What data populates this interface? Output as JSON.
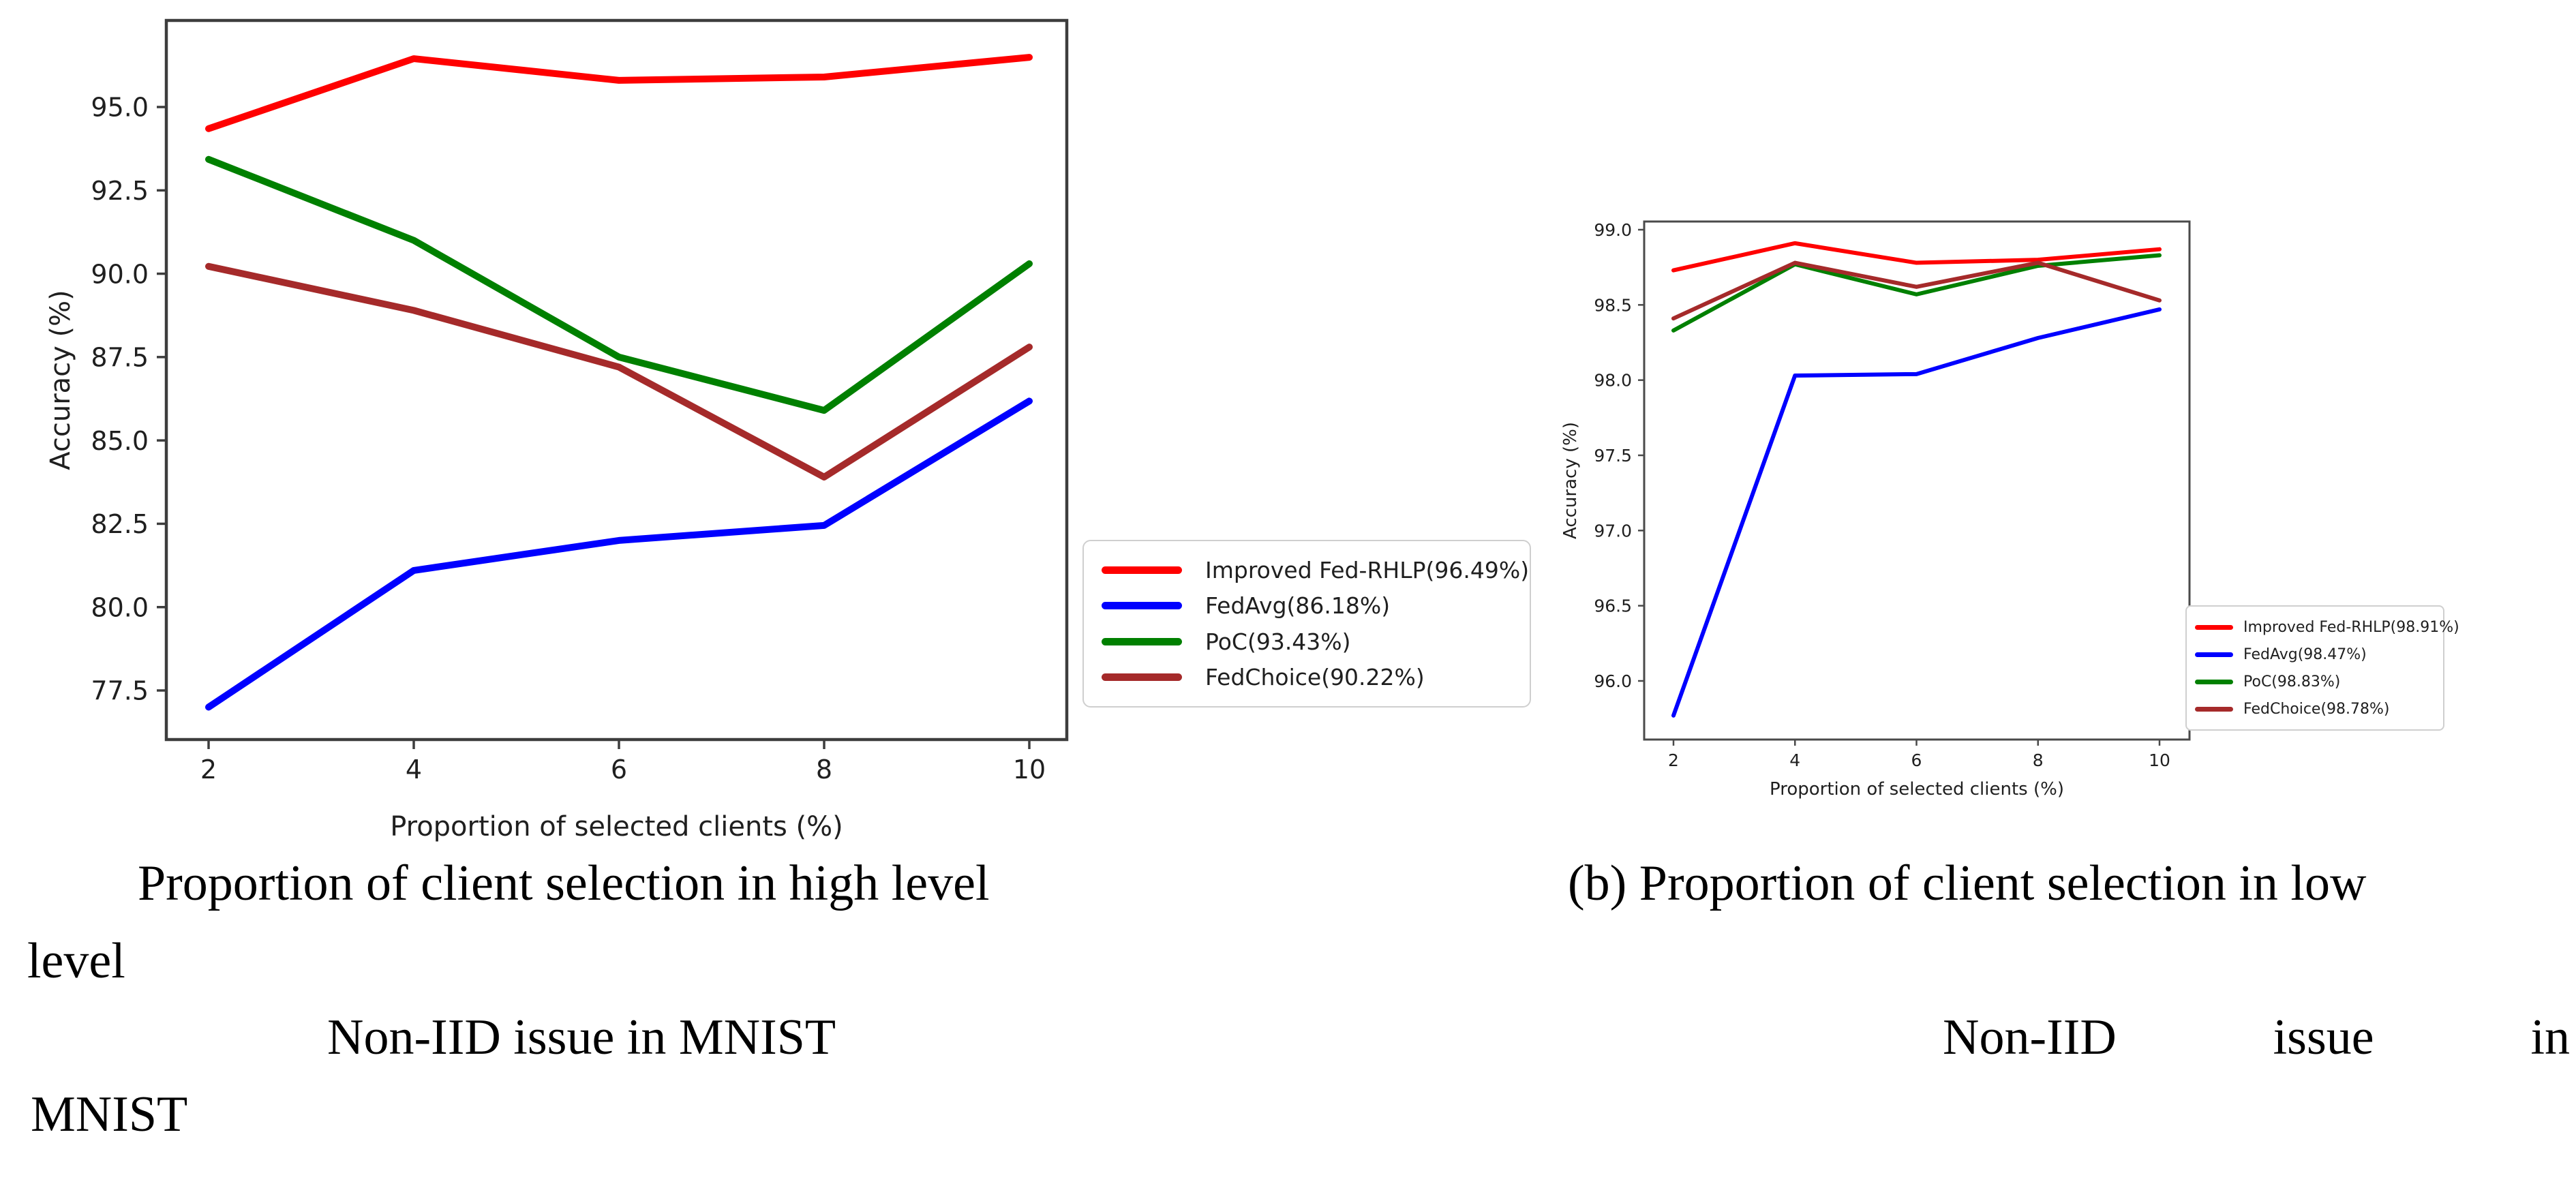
{
  "page": {
    "background": "#ffffff"
  },
  "colors": {
    "red": "#ff0000",
    "blue": "#0000ff",
    "green": "#008000",
    "brown": "#a52a2a",
    "spine_left_chart": "#3d3d3d",
    "spine_right_chart": "#4a4a4a",
    "legend_border": "#cfcfcf",
    "text": "#1f1f1f"
  },
  "chart_data": [
    {
      "id": "high-level-noniid-mnist",
      "type": "line",
      "title": "",
      "xlabel": "Proportion of selected clients (%)",
      "ylabel": "Accuracy (%)",
      "x": [
        2,
        4,
        6,
        8,
        10
      ],
      "xtick_labels": [
        "2",
        "4",
        "6",
        "8",
        "10"
      ],
      "ytick_values": [
        95.0,
        92.5,
        90.0,
        87.5,
        85.0,
        82.5,
        80.0,
        77.5
      ],
      "ytick_labels": [
        "95.0",
        "92.5",
        "90.0",
        "87.5",
        "85.0",
        "82.5",
        "80.0",
        "77.5"
      ],
      "ylim": [
        75.9,
        97.7
      ],
      "grid": false,
      "legend_position": "outside-right",
      "series": [
        {
          "name": "Improved Fed-RHLP(96.49%)",
          "color": "red",
          "values": [
            94.35,
            96.45,
            95.8,
            95.9,
            96.49
          ]
        },
        {
          "name": "FedAvg(86.18%)",
          "color": "blue",
          "values": [
            77.0,
            81.1,
            82.0,
            82.45,
            86.18
          ]
        },
        {
          "name": "PoC(93.43%)",
          "color": "green",
          "values": [
            93.43,
            91.0,
            87.5,
            85.9,
            90.3
          ]
        },
        {
          "name": "FedChoice(90.22%)",
          "color": "brown",
          "values": [
            90.22,
            88.9,
            87.2,
            83.9,
            87.8
          ]
        }
      ]
    },
    {
      "id": "low-level-noniid-mnist",
      "type": "line",
      "title": "",
      "xlabel": "Proportion of selected clients (%)",
      "ylabel": "Accuracy (%)",
      "x": [
        2,
        4,
        6,
        8,
        10
      ],
      "xtick_labels": [
        "2",
        "4",
        "6",
        "8",
        "10"
      ],
      "ytick_values": [
        99.0,
        98.5,
        98.0,
        97.5,
        97.0,
        96.5,
        96.0
      ],
      "ytick_labels": [
        "99.0",
        "98.5",
        "98.0",
        "97.5",
        "97.0",
        "96.5",
        "96.0"
      ],
      "ylim": [
        95.6,
        99.05
      ],
      "grid": false,
      "legend_position": "outside-right",
      "series": [
        {
          "name": "Improved Fed-RHLP(98.91%)",
          "color": "red",
          "values": [
            98.73,
            98.91,
            98.78,
            98.8,
            98.87
          ]
        },
        {
          "name": "FedAvg(98.47%)",
          "color": "blue",
          "values": [
            95.77,
            98.03,
            98.04,
            98.28,
            98.47
          ]
        },
        {
          "name": "PoC(98.83%)",
          "color": "green",
          "values": [
            98.33,
            98.77,
            98.57,
            98.76,
            98.83
          ]
        },
        {
          "name": "FedChoice(98.78%)",
          "color": "brown",
          "values": [
            98.41,
            98.78,
            98.62,
            98.78,
            98.53
          ]
        }
      ]
    }
  ],
  "figure": {
    "caption_line1_left": "Proportion of client selection in high level",
    "caption_line1_right": "(b) Proportion of client selection in low",
    "caption_line2": "level",
    "caption_line3_left": "Non-IID issue in MNIST",
    "caption_line3_right_words": [
      "Non-IID",
      "issue",
      "in"
    ],
    "caption_line4": "MNIST"
  }
}
